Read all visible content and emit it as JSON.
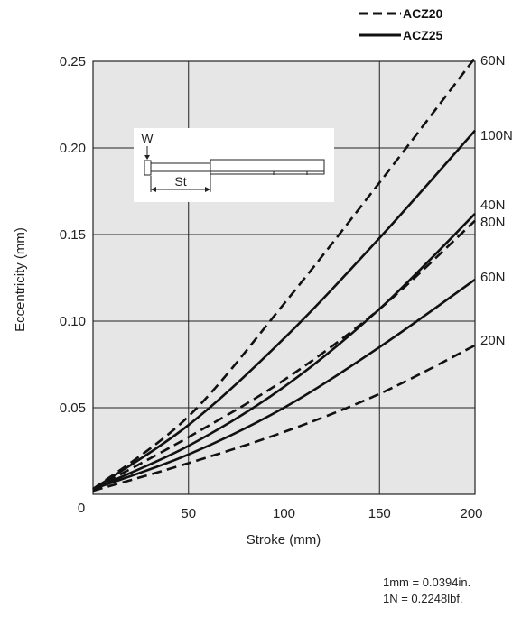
{
  "chart_data": {
    "type": "line",
    "title": "",
    "xlabel": "Stroke (mm)",
    "ylabel": "Eccentricity (mm)",
    "xlim": [
      0,
      200
    ],
    "ylim": [
      0,
      0.25
    ],
    "x_ticks": [
      "0",
      "50",
      "100",
      "150",
      "200"
    ],
    "y_ticks": [
      "0.25",
      "0.20",
      "0.15",
      "0.10",
      "0.05"
    ],
    "origin_label": "0",
    "grid": true,
    "legend_position": "top-right",
    "legend": [
      {
        "name": "ACZ20",
        "style": "dashed"
      },
      {
        "name": "ACZ25",
        "style": "solid"
      }
    ],
    "series": [
      {
        "model": "ACZ20",
        "load": "60N",
        "style": "dashed",
        "points": [
          [
            0,
            0.003
          ],
          [
            50,
            0.045
          ],
          [
            100,
            0.11
          ],
          [
            150,
            0.18
          ],
          [
            200,
            0.252
          ]
        ]
      },
      {
        "model": "ACZ20",
        "load": "40N",
        "style": "dashed",
        "points": [
          [
            0,
            0.003
          ],
          [
            50,
            0.033
          ],
          [
            100,
            0.066
          ],
          [
            150,
            0.107
          ],
          [
            200,
            0.158
          ]
        ]
      },
      {
        "model": "ACZ20",
        "load": "20N",
        "style": "dashed",
        "points": [
          [
            0,
            0.002
          ],
          [
            50,
            0.018
          ],
          [
            100,
            0.036
          ],
          [
            150,
            0.058
          ],
          [
            200,
            0.086
          ]
        ]
      },
      {
        "model": "ACZ25",
        "load": "100N",
        "style": "solid",
        "points": [
          [
            0,
            0.003
          ],
          [
            50,
            0.04
          ],
          [
            100,
            0.09
          ],
          [
            150,
            0.148
          ],
          [
            200,
            0.21
          ]
        ]
      },
      {
        "model": "ACZ25",
        "load": "80N",
        "style": "solid",
        "points": [
          [
            0,
            0.003
          ],
          [
            50,
            0.028
          ],
          [
            100,
            0.062
          ],
          [
            150,
            0.107
          ],
          [
            200,
            0.162
          ]
        ]
      },
      {
        "model": "ACZ25",
        "load": "60N",
        "style": "solid",
        "points": [
          [
            0,
            0.003
          ],
          [
            50,
            0.023
          ],
          [
            100,
            0.05
          ],
          [
            150,
            0.085
          ],
          [
            200,
            0.124
          ]
        ]
      }
    ],
    "inset": {
      "w_label": "W",
      "st_label": "St"
    }
  },
  "conversions": [
    "1mm = 0.0394in.",
    "1N = 0.2248lbf."
  ]
}
